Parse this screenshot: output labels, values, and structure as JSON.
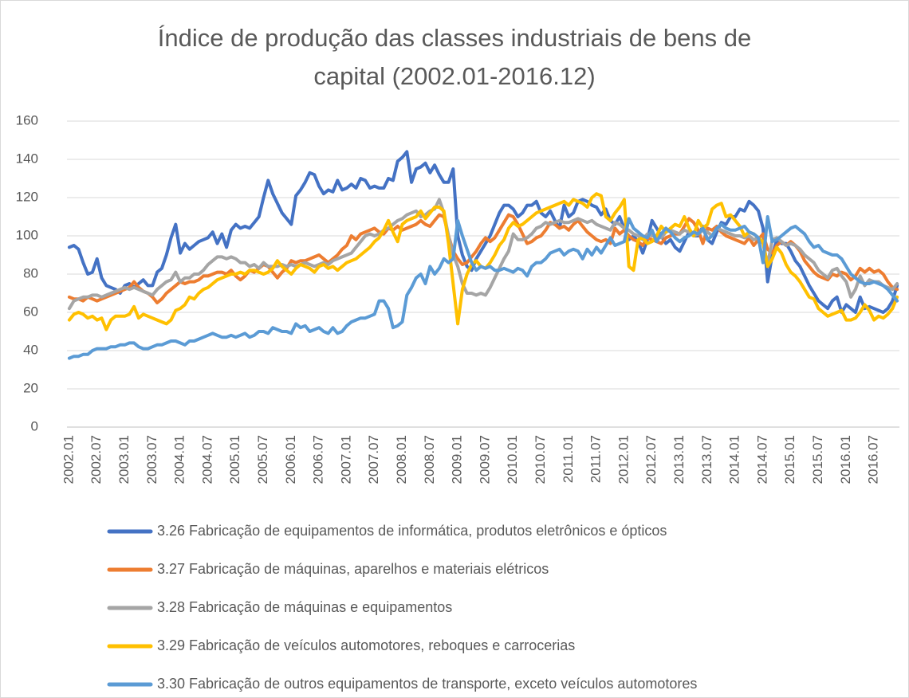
{
  "chart_data": {
    "type": "line",
    "title": "Índice de produção das classes industriais de bens de capital (2002.01-2016.12)",
    "categories": [
      "2002.01",
      null,
      null,
      null,
      null,
      null,
      "2002.07",
      null,
      null,
      null,
      null,
      null,
      "2003.01",
      null,
      null,
      null,
      null,
      null,
      "2003.07",
      null,
      null,
      null,
      null,
      null,
      "2004.01",
      null,
      null,
      null,
      null,
      null,
      "2004.07",
      null,
      null,
      null,
      null,
      null,
      "2005.01",
      null,
      null,
      null,
      null,
      null,
      "2005.07",
      null,
      null,
      null,
      null,
      null,
      "2006.01",
      null,
      null,
      null,
      null,
      null,
      "2006.07",
      null,
      null,
      null,
      null,
      null,
      "2007.01",
      null,
      null,
      null,
      null,
      null,
      "2007.07",
      null,
      null,
      null,
      null,
      null,
      "2008.01",
      null,
      null,
      null,
      null,
      null,
      "2008.07",
      null,
      null,
      null,
      null,
      null,
      "2009.01",
      null,
      null,
      null,
      null,
      null,
      "2009.07",
      null,
      null,
      null,
      null,
      null,
      "2010.01",
      null,
      null,
      null,
      null,
      null,
      "2010.07",
      null,
      null,
      null,
      null,
      null,
      "2011.01",
      null,
      null,
      null,
      null,
      null,
      "2011.07",
      null,
      null,
      null,
      null,
      null,
      "2012.01",
      null,
      null,
      null,
      null,
      null,
      "2012.07",
      null,
      null,
      null,
      null,
      null,
      "2013.01",
      null,
      null,
      null,
      null,
      null,
      "2013.07",
      null,
      null,
      null,
      null,
      null,
      "2014.01",
      null,
      null,
      null,
      null,
      null,
      "2014.07",
      null,
      null,
      null,
      null,
      null,
      "2015.01",
      null,
      null,
      null,
      null,
      null,
      "2015.07",
      null,
      null,
      null,
      null,
      null,
      "2016.01",
      null,
      null,
      null,
      null,
      null,
      "2016.07",
      null,
      null,
      null,
      null,
      null
    ],
    "series": [
      {
        "name": "3.26 Fabricação de equipamentos de informática, produtos eletrônicos e ópticos",
        "color": "#4472c4",
        "values": [
          94,
          95,
          93,
          86,
          80,
          81,
          88,
          78,
          74,
          73,
          72,
          70,
          74,
          75,
          73,
          75,
          77,
          74,
          74,
          81,
          83,
          90,
          99,
          106,
          91,
          96,
          93,
          95,
          97,
          98,
          99,
          102,
          96,
          101,
          94,
          103,
          106,
          104,
          105,
          104,
          107,
          110,
          120,
          129,
          122,
          117,
          112,
          109,
          106,
          121,
          124,
          128,
          133,
          132,
          126,
          122,
          124,
          123,
          129,
          124,
          125,
          127,
          125,
          130,
          129,
          125,
          126,
          125,
          125,
          130,
          129,
          139,
          141,
          144,
          128,
          135,
          136,
          138,
          133,
          137,
          132,
          128,
          128,
          135,
          100,
          90,
          84,
          82,
          88,
          92,
          96,
          100,
          106,
          112,
          116,
          116,
          114,
          110,
          112,
          116,
          116,
          118,
          112,
          110,
          113,
          108,
          104,
          116,
          110,
          112,
          118,
          119,
          118,
          116,
          115,
          111,
          114,
          108,
          106,
          110,
          104,
          98,
          100,
          97,
          91,
          98,
          108,
          104,
          100,
          96,
          98,
          94,
          92,
          97,
          102,
          100,
          100,
          105,
          98,
          96,
          102,
          107,
          106,
          110,
          110,
          114,
          113,
          118,
          116,
          113,
          104,
          76,
          90,
          98,
          96,
          96,
          92,
          87,
          84,
          79,
          74,
          70,
          66,
          64,
          62,
          66,
          68,
          60,
          64,
          62,
          60,
          68,
          62,
          63,
          62,
          61,
          60,
          62,
          66,
          74
        ]
      },
      {
        "name": "3.27 Fabricação de máquinas, aparelhos e materiais elétricos",
        "color": "#ed7d31",
        "values": [
          68,
          67,
          67,
          66,
          68,
          67,
          66,
          67,
          68,
          69,
          70,
          71,
          72,
          73,
          76,
          73,
          71,
          70,
          68,
          65,
          67,
          70,
          72,
          74,
          76,
          75,
          76,
          76,
          77,
          79,
          79,
          80,
          81,
          81,
          80,
          82,
          79,
          77,
          79,
          82,
          81,
          83,
          85,
          84,
          81,
          78,
          81,
          83,
          87,
          86,
          87,
          87,
          88,
          89,
          90,
          88,
          86,
          88,
          90,
          93,
          95,
          100,
          98,
          101,
          102,
          103,
          104,
          102,
          101,
          104,
          103,
          105,
          103,
          104,
          105,
          106,
          108,
          106,
          105,
          108,
          111,
          110,
          100,
          92,
          88,
          85,
          86,
          89,
          92,
          96,
          99,
          97,
          99,
          103,
          107,
          111,
          110,
          106,
          101,
          96,
          97,
          99,
          100,
          103,
          107,
          106,
          104,
          105,
          103,
          106,
          108,
          105,
          102,
          100,
          98,
          97,
          98,
          96,
          104,
          101,
          103,
          100,
          98,
          97,
          95,
          99,
          98,
          97,
          96,
          99,
          100,
          101,
          101,
          105,
          109,
          107,
          103,
          96,
          104,
          103,
          105,
          102,
          100,
          99,
          98,
          97,
          96,
          99,
          95,
          98,
          101,
          93,
          91,
          95,
          97,
          95,
          97,
          95,
          92,
          87,
          84,
          81,
          79,
          78,
          77,
          80,
          79,
          81,
          80,
          77,
          79,
          83,
          81,
          83,
          81,
          82,
          80,
          76,
          73,
          72
        ]
      },
      {
        "name": "3.28 Fabricação de máquinas e equipamentos",
        "color": "#a5a5a5",
        "values": [
          62,
          66,
          67,
          68,
          68,
          69,
          69,
          68,
          69,
          70,
          71,
          72,
          73,
          72,
          73,
          72,
          71,
          70,
          69,
          72,
          74,
          76,
          77,
          81,
          76,
          78,
          78,
          80,
          80,
          82,
          85,
          87,
          89,
          89,
          88,
          89,
          88,
          86,
          86,
          84,
          85,
          83,
          86,
          84,
          84,
          84,
          85,
          84,
          85,
          84,
          85,
          86,
          85,
          84,
          85,
          86,
          85,
          87,
          88,
          89,
          90,
          91,
          94,
          97,
          100,
          101,
          100,
          101,
          103,
          104,
          106,
          108,
          109,
          111,
          112,
          113,
          110,
          111,
          113,
          114,
          119,
          112,
          100,
          90,
          84,
          75,
          70,
          70,
          69,
          70,
          69,
          73,
          78,
          83,
          88,
          92,
          101,
          98,
          98,
          99,
          101,
          104,
          105,
          107,
          106,
          107,
          108,
          107,
          107,
          108,
          109,
          108,
          107,
          108,
          106,
          105,
          104,
          103,
          107,
          106,
          104,
          103,
          101,
          100,
          98,
          101,
          100,
          100,
          99,
          102,
          103,
          102,
          101,
          103,
          102,
          100,
          101,
          103,
          102,
          100,
          104,
          103,
          102,
          101,
          100,
          100,
          99,
          100,
          98,
          99,
          96,
          85,
          98,
          99,
          97,
          95,
          96,
          95,
          93,
          90,
          88,
          86,
          82,
          80,
          78,
          82,
          83,
          79,
          76,
          68,
          72,
          79,
          74,
          77,
          76,
          76,
          74,
          73,
          72,
          75
        ]
      },
      {
        "name": "3.29 Fabricação de veículos automotores, reboques e carrocerias",
        "color": "#ffc000",
        "values": [
          56,
          59,
          60,
          59,
          57,
          58,
          56,
          57,
          51,
          56,
          58,
          58,
          58,
          59,
          63,
          57,
          59,
          58,
          57,
          56,
          55,
          54,
          56,
          61,
          62,
          64,
          68,
          67,
          70,
          72,
          73,
          75,
          77,
          78,
          79,
          80,
          80,
          81,
          80,
          82,
          82,
          81,
          80,
          81,
          83,
          87,
          84,
          82,
          80,
          83,
          85,
          84,
          83,
          81,
          84,
          85,
          83,
          84,
          82,
          84,
          86,
          87,
          88,
          90,
          92,
          94,
          97,
          99,
          103,
          108,
          102,
          97,
          106,
          108,
          109,
          110,
          113,
          109,
          112,
          115,
          115,
          113,
          96,
          75,
          54,
          72,
          80,
          85,
          87,
          84,
          83,
          86,
          90,
          95,
          98,
          104,
          107,
          105,
          106,
          108,
          110,
          112,
          113,
          114,
          115,
          116,
          117,
          118,
          116,
          119,
          118,
          117,
          115,
          120,
          122,
          121,
          110,
          108,
          112,
          115,
          119,
          84,
          82,
          98,
          99,
          96,
          97,
          100,
          105,
          102,
          104,
          106,
          105,
          110,
          104,
          100,
          108,
          104,
          106,
          114,
          116,
          117,
          110,
          111,
          108,
          105,
          100,
          102,
          101,
          99,
          97,
          84,
          88,
          94,
          91,
          85,
          81,
          79,
          76,
          72,
          68,
          67,
          62,
          60,
          58,
          59,
          60,
          61,
          56,
          56,
          57,
          60,
          64,
          61,
          56,
          58,
          57,
          59,
          62,
          68
        ]
      },
      {
        "name": "3.30 Fabricação de outros equipamentos de transporte, exceto veículos automotores",
        "color": "#5b9bd5",
        "values": [
          36,
          37,
          37,
          38,
          38,
          40,
          41,
          41,
          41,
          42,
          42,
          43,
          43,
          44,
          44,
          42,
          41,
          41,
          42,
          43,
          43,
          44,
          45,
          45,
          44,
          43,
          45,
          45,
          46,
          47,
          48,
          49,
          48,
          47,
          47,
          48,
          47,
          48,
          49,
          47,
          48,
          50,
          50,
          49,
          52,
          51,
          50,
          50,
          49,
          54,
          52,
          53,
          50,
          51,
          52,
          50,
          49,
          52,
          49,
          50,
          53,
          55,
          56,
          57,
          57,
          58,
          59,
          66,
          66,
          62,
          52,
          53,
          55,
          69,
          73,
          78,
          80,
          75,
          84,
          80,
          83,
          88,
          86,
          88,
          108,
          100,
          93,
          86,
          82,
          84,
          83,
          84,
          82,
          82,
          83,
          82,
          81,
          83,
          82,
          79,
          84,
          86,
          86,
          88,
          91,
          92,
          93,
          90,
          92,
          93,
          92,
          88,
          93,
          90,
          94,
          91,
          95,
          99,
          95,
          96,
          97,
          109,
          104,
          102,
          100,
          99,
          103,
          97,
          101,
          104,
          102,
          99,
          97,
          99,
          100,
          102,
          101,
          104,
          98,
          100,
          104,
          106,
          104,
          103,
          103,
          104,
          105,
          102,
          101,
          99,
          86,
          110,
          97,
          98,
          100,
          102,
          104,
          105,
          103,
          101,
          97,
          94,
          95,
          92,
          91,
          90,
          90,
          88,
          84,
          80,
          78,
          76,
          75,
          75,
          76,
          75,
          74,
          72,
          69,
          66
        ]
      }
    ],
    "ylim": [
      0,
      160
    ],
    "yticks": [
      0,
      20,
      40,
      60,
      80,
      100,
      120,
      140,
      160
    ],
    "grid": true
  }
}
